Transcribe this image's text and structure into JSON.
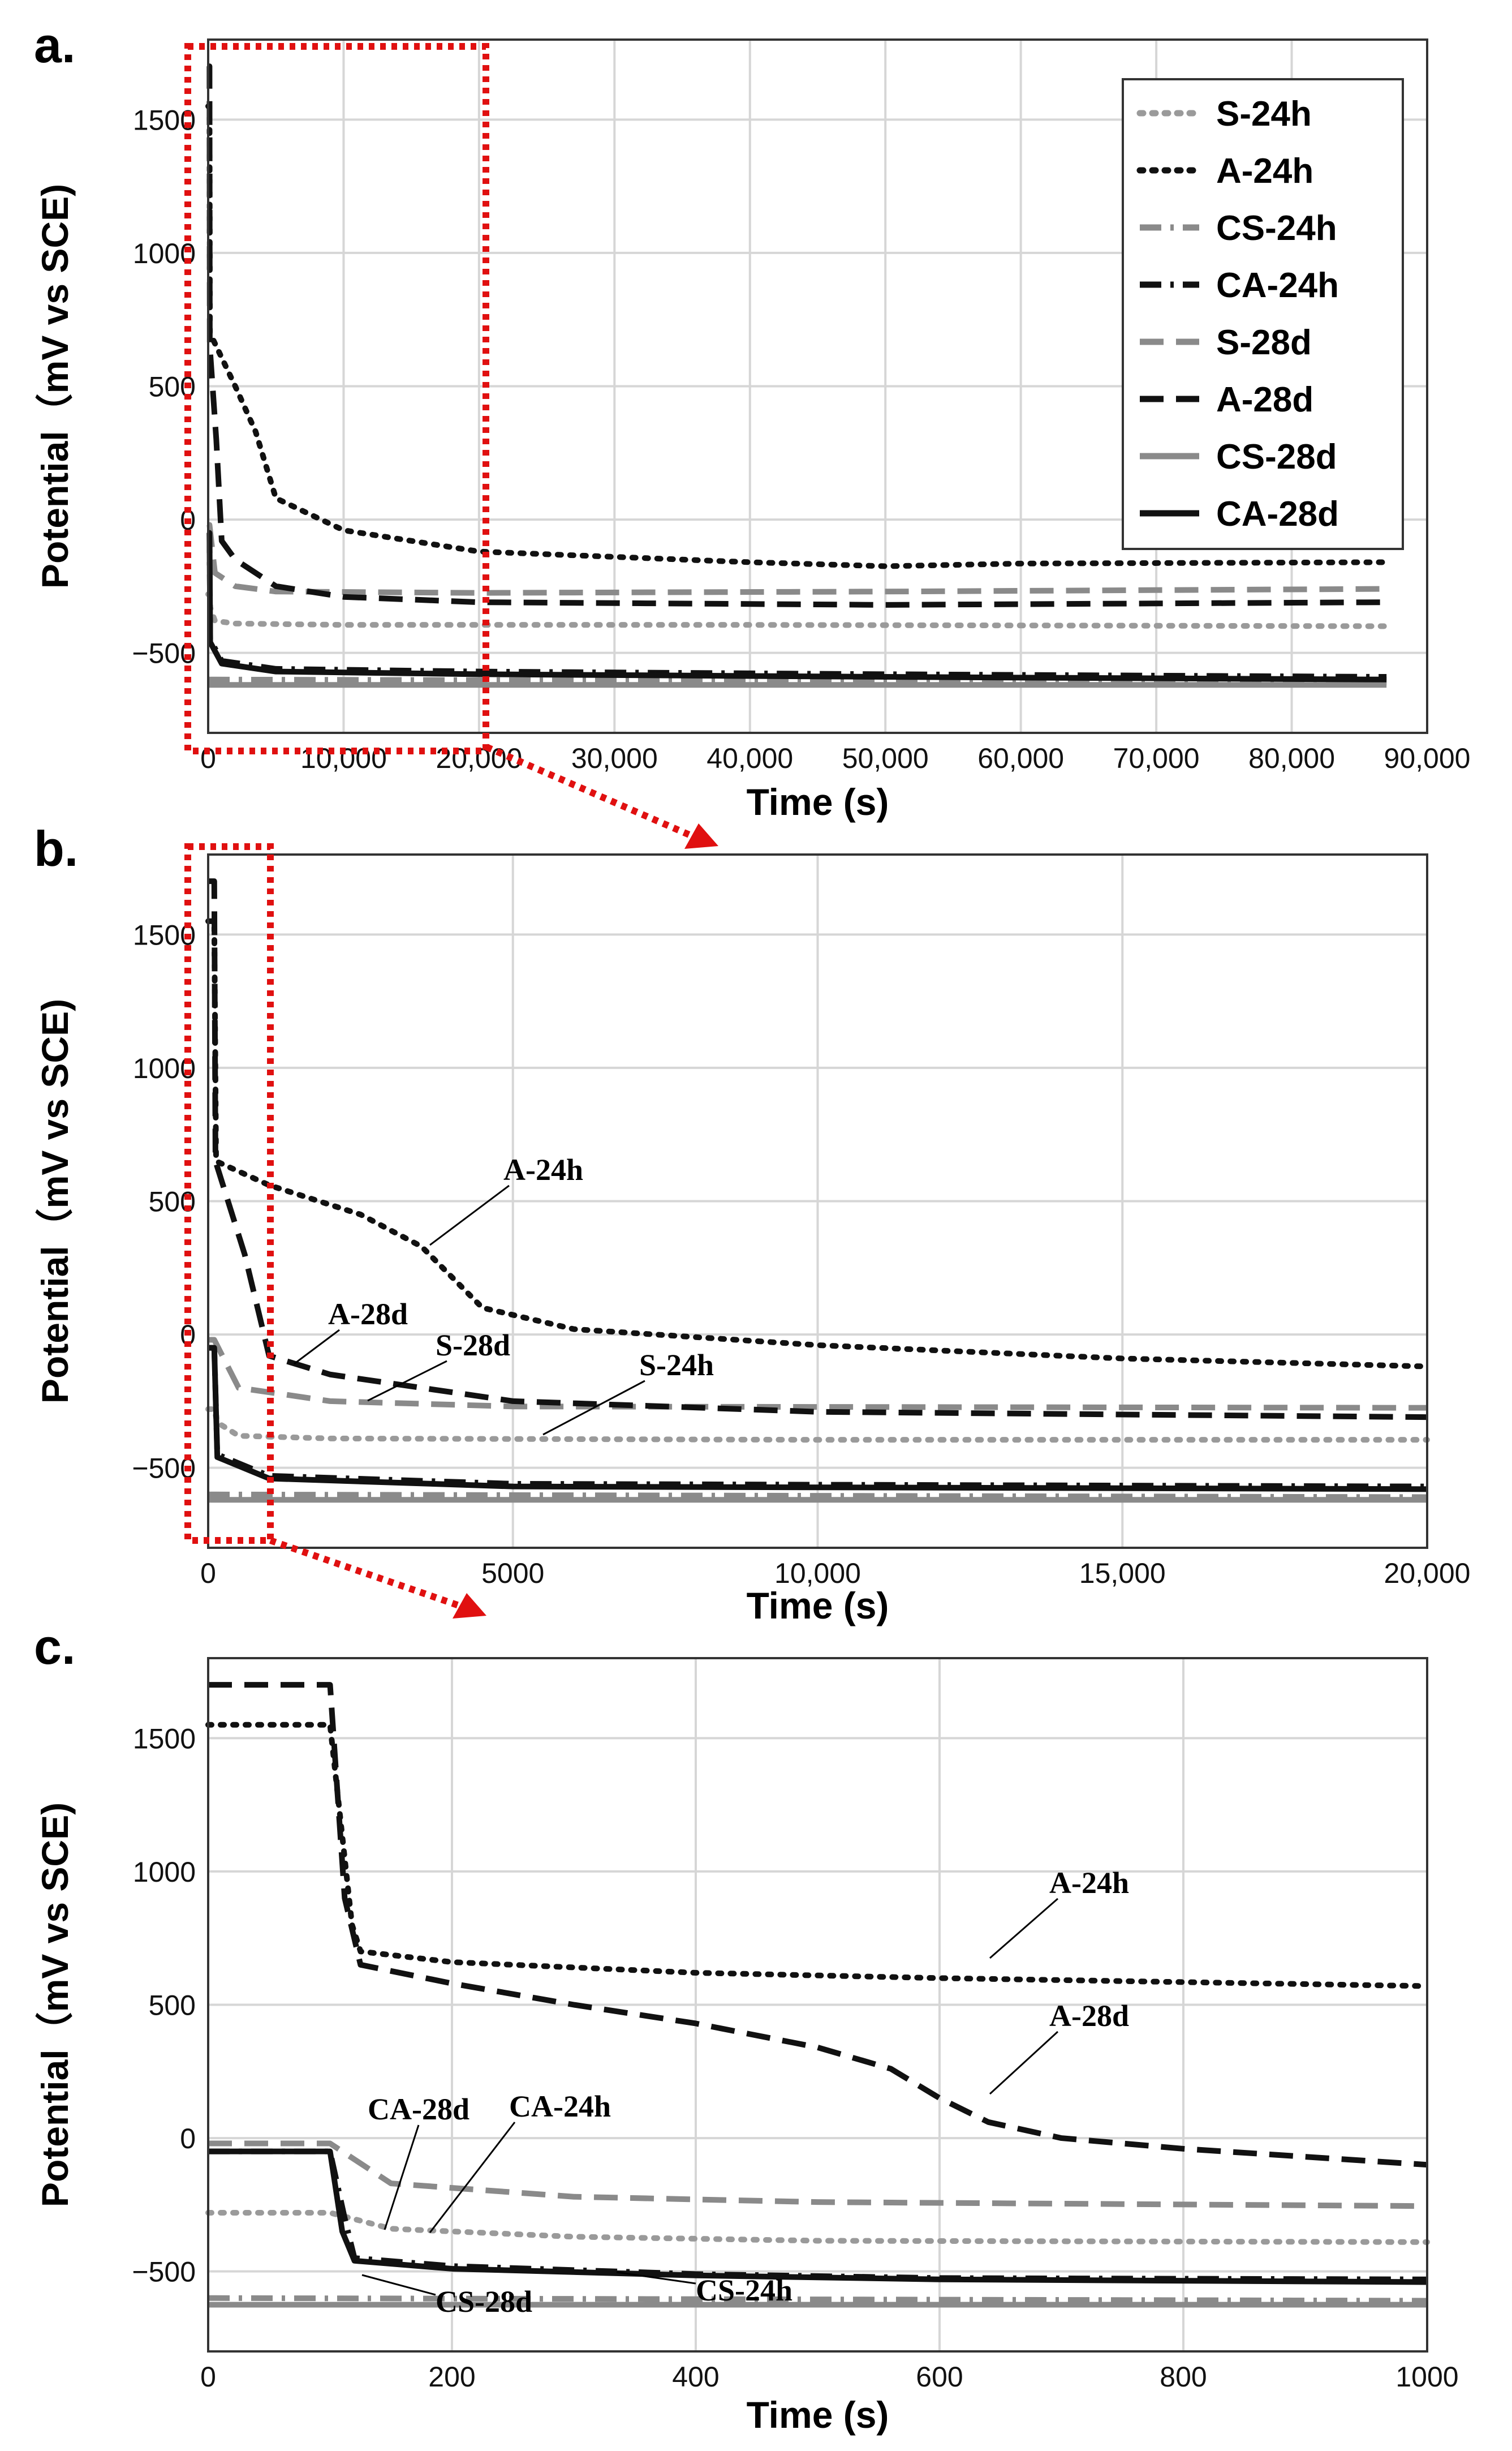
{
  "series_styles": {
    "S-24h": {
      "color": "#9a9a9a",
      "dash": "dot"
    },
    "A-24h": {
      "color": "#111111",
      "dash": "dot"
    },
    "CS-24h": {
      "color": "#8a8a8a",
      "dash": "dashdot"
    },
    "CA-24h": {
      "color": "#111111",
      "dash": "dashdot"
    },
    "S-28d": {
      "color": "#8a8a8a",
      "dash": "dash"
    },
    "A-28d": {
      "color": "#111111",
      "dash": "dash"
    },
    "CS-28d": {
      "color": "#8a8a8a",
      "dash": "solid"
    },
    "CA-28d": {
      "color": "#111111",
      "dash": "solid"
    }
  },
  "chart_data": [
    {
      "panel": "a.",
      "type": "line",
      "xlabel": "Time (s)",
      "ylabel": "Potential（mV vs SCE)",
      "xlim": [
        0,
        90000
      ],
      "ylim": [
        -800,
        1800
      ],
      "xticks": [
        "0",
        "10,000",
        "20,000",
        "30,000",
        "40,000",
        "50,000",
        "60,000",
        "70,000",
        "80,000",
        "90,000"
      ],
      "yticks": [
        "-500",
        "0",
        "500",
        "1000",
        "1500"
      ],
      "grid": true,
      "legend": [
        "S-24h",
        "A-24h",
        "CS-24h",
        "CA-24h",
        "S-28d",
        "A-28d",
        "CS-28d",
        "CA-28d"
      ],
      "legend_position": "top-right",
      "series": [
        {
          "name": "S-24h",
          "x": [
            0,
            100,
            150,
            500,
            2000,
            10000,
            40000,
            87000
          ],
          "y": [
            -280,
            -280,
            -330,
            -380,
            -390,
            -395,
            -395,
            -400
          ]
        },
        {
          "name": "A-24h",
          "x": [
            0,
            100,
            130,
            2000,
            3500,
            5000,
            10000,
            20000,
            40000,
            50000,
            60000,
            87000
          ],
          "y": [
            1550,
            1550,
            700,
            500,
            330,
            80,
            -40,
            -120,
            -160,
            -175,
            -165,
            -160
          ]
        },
        {
          "name": "CS-24h",
          "x": [
            0,
            87000
          ],
          "y": [
            -600,
            -610
          ]
        },
        {
          "name": "CA-24h",
          "x": [
            0,
            100,
            150,
            1000,
            5000,
            20000,
            50000,
            87000
          ],
          "y": [
            -50,
            -50,
            -450,
            -530,
            -560,
            -570,
            -580,
            -590
          ]
        },
        {
          "name": "S-28d",
          "x": [
            0,
            100,
            500,
            2000,
            5000,
            20000,
            50000,
            87000
          ],
          "y": [
            -20,
            -20,
            -200,
            -250,
            -270,
            -275,
            -270,
            -260
          ]
        },
        {
          "name": "A-28d",
          "x": [
            0,
            100,
            120,
            600,
            1000,
            2000,
            5000,
            10000,
            20000,
            50000,
            87000
          ],
          "y": [
            1700,
            1700,
            650,
            300,
            -80,
            -150,
            -250,
            -290,
            -310,
            -320,
            -310
          ]
        },
        {
          "name": "CS-28d",
          "x": [
            0,
            87000
          ],
          "y": [
            -620,
            -620
          ]
        },
        {
          "name": "CA-28d",
          "x": [
            0,
            100,
            150,
            1000,
            5000,
            20000,
            50000,
            87000
          ],
          "y": [
            -50,
            -50,
            -460,
            -540,
            -570,
            -580,
            -590,
            -600
          ]
        }
      ]
    },
    {
      "panel": "b.",
      "type": "line",
      "xlabel": "Time (s)",
      "ylabel": "Potential（mV vs SCE)",
      "xlim": [
        0,
        20000
      ],
      "ylim": [
        -800,
        1800
      ],
      "xticks": [
        "0",
        "5000",
        "10,000",
        "15,000",
        "20,000"
      ],
      "yticks": [
        "-500",
        "0",
        "500",
        "1000",
        "1500"
      ],
      "grid": true,
      "annotations": [
        "A-24h",
        "A-28d",
        "S-28d",
        "S-24h"
      ],
      "series": [
        {
          "name": "S-24h",
          "x": [
            0,
            100,
            150,
            500,
            2000,
            10000,
            20000
          ],
          "y": [
            -280,
            -280,
            -330,
            -380,
            -390,
            -395,
            -395
          ]
        },
        {
          "name": "A-24h",
          "x": [
            0,
            100,
            130,
            1000,
            2500,
            3500,
            4500,
            6000,
            10000,
            15000,
            20000
          ],
          "y": [
            1550,
            1550,
            650,
            560,
            450,
            330,
            100,
            20,
            -40,
            -90,
            -120
          ]
        },
        {
          "name": "CS-24h",
          "x": [
            0,
            20000
          ],
          "y": [
            -600,
            -610
          ]
        },
        {
          "name": "CA-24h",
          "x": [
            0,
            100,
            150,
            1000,
            5000,
            20000
          ],
          "y": [
            -50,
            -50,
            -450,
            -530,
            -560,
            -570
          ]
        },
        {
          "name": "S-28d",
          "x": [
            0,
            100,
            500,
            2000,
            5000,
            20000
          ],
          "y": [
            -20,
            -20,
            -200,
            -250,
            -270,
            -275
          ]
        },
        {
          "name": "A-28d",
          "x": [
            0,
            100,
            120,
            600,
            1000,
            2000,
            5000,
            10000,
            20000
          ],
          "y": [
            1700,
            1700,
            650,
            300,
            -80,
            -150,
            -250,
            -290,
            -310
          ]
        },
        {
          "name": "CS-28d",
          "x": [
            0,
            20000
          ],
          "y": [
            -620,
            -620
          ]
        },
        {
          "name": "CA-28d",
          "x": [
            0,
            100,
            150,
            1000,
            5000,
            20000
          ],
          "y": [
            -50,
            -50,
            -460,
            -540,
            -570,
            -580
          ]
        }
      ]
    },
    {
      "panel": "c.",
      "type": "line",
      "xlabel": "Time (s)",
      "ylabel": "Potential（mV vs SCE)",
      "xlim": [
        0,
        1000
      ],
      "ylim": [
        -800,
        1800
      ],
      "xticks": [
        "0",
        "200",
        "400",
        "600",
        "800",
        "1000"
      ],
      "yticks": [
        "-500",
        "0",
        "500",
        "1000",
        "1500"
      ],
      "grid": true,
      "annotations": [
        "A-24h",
        "A-28d",
        "CA-28d",
        "CA-24h",
        "CS-28d",
        "CS-24h"
      ],
      "series": [
        {
          "name": "S-24h",
          "x": [
            0,
            100,
            150,
            300,
            500,
            1000
          ],
          "y": [
            -280,
            -280,
            -340,
            -370,
            -385,
            -390
          ]
        },
        {
          "name": "A-24h",
          "x": [
            0,
            100,
            118,
            125,
            200,
            400,
            600,
            800,
            1000
          ],
          "y": [
            1550,
            1550,
            800,
            700,
            660,
            620,
            600,
            585,
            570
          ]
        },
        {
          "name": "CS-24h",
          "x": [
            0,
            1000
          ],
          "y": [
            -600,
            -610
          ]
        },
        {
          "name": "CA-24h",
          "x": [
            0,
            100,
            112,
            120,
            200,
            400,
            600,
            1000
          ],
          "y": [
            -50,
            -50,
            -300,
            -450,
            -480,
            -510,
            -525,
            -530
          ]
        },
        {
          "name": "S-28d",
          "x": [
            0,
            100,
            150,
            300,
            500,
            1000
          ],
          "y": [
            -20,
            -20,
            -170,
            -220,
            -240,
            -255
          ]
        },
        {
          "name": "A-28d",
          "x": [
            0,
            100,
            112,
            125,
            200,
            300,
            400,
            500,
            560,
            600,
            640,
            700,
            800,
            1000
          ],
          "y": [
            1700,
            1700,
            900,
            650,
            580,
            500,
            430,
            340,
            260,
            150,
            60,
            0,
            -40,
            -100
          ]
        },
        {
          "name": "CS-28d",
          "x": [
            0,
            1000
          ],
          "y": [
            -625,
            -625
          ]
        },
        {
          "name": "CA-28d",
          "x": [
            0,
            100,
            110,
            120,
            200,
            400,
            600,
            1000
          ],
          "y": [
            -50,
            -50,
            -350,
            -460,
            -490,
            -515,
            -530,
            -540
          ]
        }
      ]
    }
  ]
}
